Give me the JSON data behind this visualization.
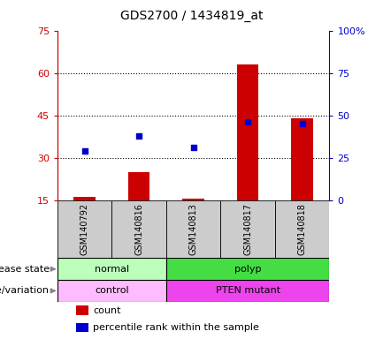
{
  "title": "GDS2700 / 1434819_at",
  "samples": [
    "GSM140792",
    "GSM140816",
    "GSM140813",
    "GSM140817",
    "GSM140818"
  ],
  "counts": [
    16,
    25,
    15.5,
    63,
    44
  ],
  "percentile_ranks": [
    29,
    38,
    31,
    46,
    45
  ],
  "ylim_left": [
    15,
    75
  ],
  "ylim_right": [
    0,
    100
  ],
  "yticks_left": [
    15,
    30,
    45,
    60,
    75
  ],
  "yticks_right": [
    0,
    25,
    50,
    75,
    100
  ],
  "ytick_labels_right": [
    "0",
    "25",
    "50",
    "75",
    "100%"
  ],
  "bar_color": "#cc0000",
  "dot_color": "#0000cc",
  "grid_dotted_ticks": [
    30,
    45,
    60
  ],
  "disease_state_color_normal": "#bbffbb",
  "disease_state_color_polyp": "#44dd44",
  "genotype_color_control": "#ffbbff",
  "genotype_color_pten": "#ee44ee",
  "left_axis_color": "#cc0000",
  "right_axis_color": "#0000cc",
  "sample_box_color": "#cccccc",
  "bar_width": 0.4
}
